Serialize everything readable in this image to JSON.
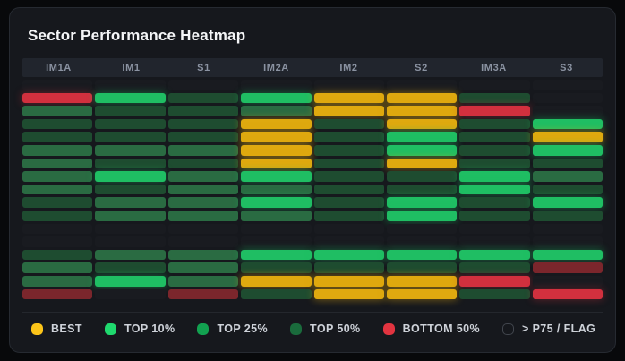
{
  "card": {
    "title": "Sector Performance Heatmap"
  },
  "legend": {
    "items": [
      {
        "id": "best",
        "label": "BEST",
        "dot_color": "#fcc419",
        "hollow": false
      },
      {
        "id": "top10",
        "label": "TOP 10%",
        "dot_color": "#1fd96e",
        "hollow": false
      },
      {
        "id": "top25",
        "label": "TOP 25%",
        "dot_color": "#12a150",
        "hollow": false
      },
      {
        "id": "top50",
        "label": "TOP 50%",
        "dot_color": "#1a6b3c",
        "hollow": false
      },
      {
        "id": "bottom50",
        "label": "BOTTOM 50%",
        "dot_color": "#e23440",
        "hollow": false
      },
      {
        "id": "p75flag",
        "label": "> P75 / FLAG",
        "dot_color": "",
        "hollow": true
      }
    ]
  },
  "tier_colors": {
    "best": {
      "fill": "#dfa90f",
      "glow": "rgba(223,169,15,0.45)"
    },
    "top10": {
      "fill": "#1fbe63",
      "glow": "rgba(31,190,99,0.40)"
    },
    "top25": {
      "fill": "#2a6b42",
      "glow": ""
    },
    "top50": {
      "fill": "#1e4c30",
      "glow": ""
    },
    "bottom50": {
      "fill": "#d2303e",
      "glow": "rgba(210,48,62,0.35)"
    },
    "flag": {
      "fill": "#7b262c",
      "glow": ""
    },
    "dark": {
      "fill": "#191b20",
      "glow": ""
    }
  },
  "chart_data": {
    "type": "heatmap",
    "title": "Sector Performance Heatmap",
    "columns": [
      "IM1A",
      "IM1",
      "S1",
      "IM2A",
      "IM2",
      "S2",
      "IM3A",
      "S3"
    ],
    "value_scale": [
      "best",
      "top10",
      "top25",
      "top50",
      "bottom50",
      "flag",
      "dark"
    ],
    "legend_position": "bottom",
    "rows": [
      [
        "dark",
        "dark",
        "dark",
        "dark",
        "dark",
        "dark",
        "dark",
        "dark"
      ],
      [
        "bottom50",
        "top10",
        "top50",
        "top10",
        "best",
        "best",
        "top50",
        "dark"
      ],
      [
        "top25",
        "top50",
        "top50",
        "top25",
        "best",
        "best",
        "bottom50",
        "dark"
      ],
      [
        "top50",
        "top50",
        "top50",
        "best",
        "top50",
        "best",
        "top50",
        "top10"
      ],
      [
        "top50",
        "top50",
        "top50",
        "best",
        "top50",
        "top10",
        "top50",
        "best"
      ],
      [
        "top25",
        "top25",
        "top25",
        "best",
        "top50",
        "top10",
        "top50",
        "top10"
      ],
      [
        "top25",
        "top50",
        "top50",
        "best",
        "top50",
        "best",
        "top50",
        "top50"
      ],
      [
        "top25",
        "top10",
        "top25",
        "top10",
        "top50",
        "top50",
        "top10",
        "top25"
      ],
      [
        "top25",
        "top50",
        "top25",
        "top25",
        "top50",
        "top50",
        "top10",
        "top50"
      ],
      [
        "top50",
        "top25",
        "top25",
        "top10",
        "top50",
        "top10",
        "top50",
        "top10"
      ],
      [
        "top50",
        "top25",
        "top25",
        "top25",
        "top50",
        "top10",
        "top50",
        "top50"
      ],
      [
        "dark",
        "dark",
        "dark",
        "dark",
        "dark",
        "dark",
        "dark",
        "dark"
      ],
      [
        "dark",
        "dark",
        "dark",
        "dark",
        "dark",
        "dark",
        "dark",
        "dark"
      ],
      [
        "top50",
        "top25",
        "top25",
        "top10",
        "top10",
        "top10",
        "top10",
        "top10"
      ],
      [
        "top25",
        "top50",
        "top25",
        "top50",
        "top50",
        "top50",
        "top50",
        "flag"
      ],
      [
        "top25",
        "top10",
        "top25",
        "best",
        "best",
        "best",
        "bottom50",
        "dark"
      ],
      [
        "flag",
        "dark",
        "flag",
        "top50",
        "best",
        "best",
        "top50",
        "bottom50"
      ]
    ]
  }
}
